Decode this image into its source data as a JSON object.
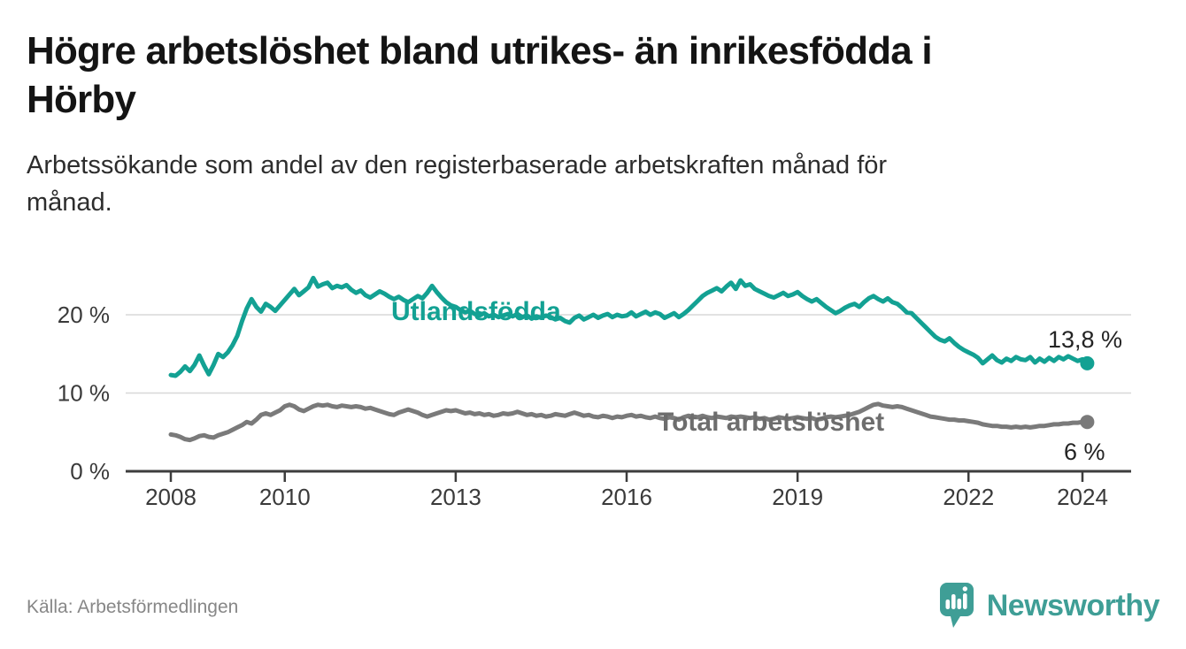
{
  "title": "Högre arbetslöshet bland utrikes- än inrikesfödda i Hörby",
  "title_lines": [
    "Högre arbetslöshet bland utrikes- än inrikesfödda i",
    "Hörby"
  ],
  "subtitle": "Arbetssökande som andel av den registerbaserade arbetskraften månad för månad.",
  "subtitle_lines": [
    "Arbetssökande som andel av den registerbaserade arbetskraften månad för",
    "månad."
  ],
  "source": "Källa: Arbetsförmedlingen",
  "brand": {
    "name": "Newsworthy",
    "icon": "newsworthy-speech-bubble-bar-chart-icon",
    "color": "#3f9e96"
  },
  "colors": {
    "foreign_line": "#13a193",
    "total_line": "#7a7a7a",
    "total_label": "#6d6d6d",
    "grid": "#d8d8d8",
    "axis": "#3d3d3d",
    "tick_text": "#3a3a3a",
    "title_text": "#141414",
    "end_label_text": "#242424"
  },
  "chart_data": {
    "type": "line",
    "title": "Högre arbetslöshet bland utrikes- än inrikesfödda i Hörby",
    "subtitle": "Arbetssökande som andel av den registerbaserade arbetskraften månad för månad.",
    "unit": "%",
    "x_start_year": 2008.0,
    "x_step_years": 0.083333,
    "x_ticks": [
      2008,
      2010,
      2013,
      2016,
      2019,
      2022,
      2024
    ],
    "x_tick_labels": [
      "2008",
      "2010",
      "2013",
      "2016",
      "2019",
      "2022",
      "2024"
    ],
    "y_ticks": [
      0,
      10,
      20
    ],
    "y_tick_labels": [
      "0 %",
      "10 %",
      "20 %"
    ],
    "ylim": [
      0,
      26
    ],
    "grid": "horizontal",
    "legend_position": "inline-on-line",
    "series": [
      {
        "name": "Utlandsfödda",
        "color": "#13a193",
        "end_value": 13.8,
        "end_label": "13,8 %",
        "values": [
          12.3,
          12.2,
          12.7,
          13.4,
          12.8,
          13.6,
          14.8,
          13.5,
          12.4,
          13.6,
          15.0,
          14.6,
          15.2,
          16.1,
          17.3,
          19.2,
          20.8,
          22.0,
          21.0,
          20.4,
          21.4,
          21.0,
          20.5,
          21.2,
          21.9,
          22.6,
          23.3,
          22.5,
          23.0,
          23.5,
          24.7,
          23.6,
          23.9,
          24.1,
          23.4,
          23.7,
          23.5,
          23.8,
          23.2,
          22.8,
          23.1,
          22.5,
          22.2,
          22.6,
          23.0,
          22.7,
          22.3,
          22.0,
          22.3,
          21.9,
          21.6,
          22.0,
          22.4,
          22.1,
          22.8,
          23.7,
          22.9,
          22.2,
          21.6,
          21.2,
          21.0,
          20.6,
          20.3,
          20.5,
          20.1,
          19.9,
          20.2,
          19.8,
          20.0,
          19.7,
          19.9,
          20.1,
          19.8,
          20.1,
          19.7,
          19.9,
          19.5,
          19.8,
          19.6,
          19.9,
          19.7,
          19.4,
          19.6,
          19.2,
          19.0,
          19.6,
          19.9,
          19.4,
          19.7,
          20.0,
          19.6,
          19.9,
          20.1,
          19.7,
          20.0,
          19.8,
          19.9,
          20.3,
          19.8,
          20.1,
          20.4,
          20.0,
          20.3,
          20.1,
          19.6,
          19.9,
          20.2,
          19.7,
          20.1,
          20.6,
          21.2,
          21.8,
          22.4,
          22.8,
          23.1,
          23.4,
          23.0,
          23.6,
          24.1,
          23.3,
          24.4,
          23.7,
          23.9,
          23.3,
          23.0,
          22.7,
          22.4,
          22.2,
          22.5,
          22.8,
          22.4,
          22.6,
          22.9,
          22.4,
          22.0,
          21.7,
          22.0,
          21.5,
          21.0,
          20.6,
          20.2,
          20.5,
          20.9,
          21.2,
          21.4,
          21.0,
          21.6,
          22.1,
          22.4,
          22.0,
          21.7,
          22.1,
          21.6,
          21.4,
          20.9,
          20.3,
          20.2,
          19.6,
          19.0,
          18.4,
          17.8,
          17.2,
          16.8,
          16.6,
          17.0,
          16.4,
          15.9,
          15.5,
          15.2,
          14.9,
          14.5,
          13.8,
          14.3,
          14.8,
          14.2,
          13.9,
          14.4,
          14.1,
          14.6,
          14.3,
          14.2,
          14.6,
          13.9,
          14.4,
          14.0,
          14.5,
          14.1,
          14.6,
          14.3,
          14.7,
          14.4,
          14.1,
          14.3,
          13.8
        ]
      },
      {
        "name": "Total arbetslöshet",
        "color": "#7a7a7a",
        "end_value": 6.3,
        "end_label": "6 %",
        "values": [
          4.7,
          4.6,
          4.4,
          4.1,
          4.0,
          4.2,
          4.5,
          4.6,
          4.4,
          4.3,
          4.6,
          4.8,
          5.0,
          5.3,
          5.6,
          5.9,
          6.3,
          6.1,
          6.6,
          7.2,
          7.4,
          7.2,
          7.5,
          7.8,
          8.3,
          8.5,
          8.3,
          7.9,
          7.7,
          8.0,
          8.3,
          8.5,
          8.4,
          8.5,
          8.3,
          8.2,
          8.4,
          8.3,
          8.2,
          8.3,
          8.2,
          8.0,
          8.1,
          7.9,
          7.7,
          7.5,
          7.3,
          7.2,
          7.5,
          7.7,
          7.9,
          7.7,
          7.5,
          7.2,
          7.0,
          7.2,
          7.4,
          7.6,
          7.8,
          7.7,
          7.8,
          7.6,
          7.4,
          7.5,
          7.3,
          7.4,
          7.2,
          7.3,
          7.1,
          7.2,
          7.4,
          7.3,
          7.4,
          7.6,
          7.4,
          7.2,
          7.3,
          7.1,
          7.2,
          7.0,
          7.1,
          7.3,
          7.2,
          7.1,
          7.3,
          7.5,
          7.3,
          7.1,
          7.2,
          7.0,
          6.9,
          7.1,
          7.0,
          6.8,
          7.0,
          6.9,
          7.1,
          7.2,
          7.0,
          7.1,
          6.9,
          6.8,
          7.0,
          6.8,
          6.7,
          6.9,
          6.8,
          6.6,
          6.9,
          7.1,
          7.0,
          6.9,
          7.1,
          6.9,
          6.8,
          7.0,
          6.9,
          6.8,
          7.0,
          6.9,
          7.0,
          6.9,
          6.8,
          6.9,
          6.7,
          6.8,
          6.6,
          6.7,
          6.9,
          6.8,
          6.7,
          6.8,
          6.9,
          6.8,
          6.7,
          6.8,
          6.6,
          6.7,
          6.9,
          7.0,
          6.9,
          7.0,
          7.1,
          7.2,
          7.4,
          7.6,
          7.9,
          8.2,
          8.5,
          8.6,
          8.4,
          8.3,
          8.2,
          8.3,
          8.2,
          8.0,
          7.8,
          7.6,
          7.4,
          7.2,
          7.0,
          6.9,
          6.8,
          6.7,
          6.6,
          6.6,
          6.5,
          6.5,
          6.4,
          6.3,
          6.2,
          6.0,
          5.9,
          5.8,
          5.8,
          5.7,
          5.7,
          5.6,
          5.7,
          5.6,
          5.7,
          5.6,
          5.7,
          5.8,
          5.8,
          5.9,
          6.0,
          6.0,
          6.1,
          6.1,
          6.2,
          6.2,
          6.3,
          6.3
        ]
      }
    ]
  }
}
